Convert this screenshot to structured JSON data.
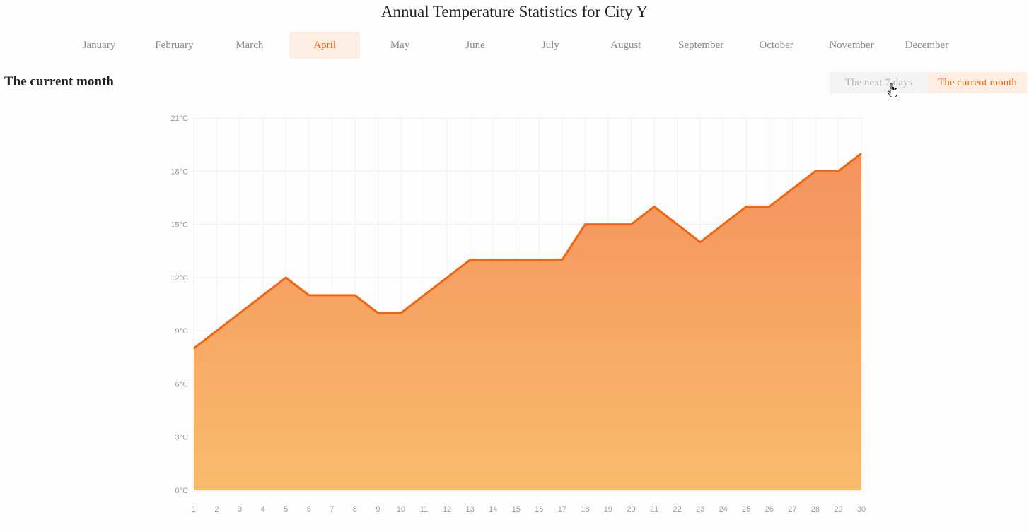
{
  "header": {
    "title": "Annual Temperature Statistics for City Y"
  },
  "months": {
    "items": [
      "January",
      "February",
      "March",
      "April",
      "May",
      "June",
      "July",
      "August",
      "September",
      "October",
      "November",
      "December"
    ],
    "active_index": 3
  },
  "section": {
    "title": "The current month"
  },
  "range_toggle": {
    "options": [
      "The next 7 days",
      "The current month"
    ],
    "active_index": 1
  },
  "colors": {
    "accent": "#f06510",
    "area_top": "#f4925e",
    "area_bottom": "#f9bb6c",
    "tab_active_bg": "#fdeee4"
  },
  "chart_data": {
    "type": "area",
    "title": "",
    "xlabel": "",
    "ylabel": "",
    "x": [
      1,
      2,
      3,
      4,
      5,
      6,
      7,
      8,
      9,
      10,
      11,
      12,
      13,
      14,
      15,
      16,
      17,
      18,
      19,
      20,
      21,
      22,
      23,
      24,
      25,
      26,
      27,
      28,
      29,
      30
    ],
    "series": [
      {
        "values": [
          8,
          9,
          10,
          11,
          12,
          11,
          11,
          11,
          10,
          10,
          11,
          12,
          13,
          13,
          13,
          13,
          13,
          15,
          15,
          15,
          16,
          15,
          14,
          15,
          16,
          16,
          17,
          18,
          18,
          19
        ]
      }
    ],
    "ylim": [
      0,
      21
    ],
    "y_ticks": [
      0,
      3,
      6,
      9,
      12,
      15,
      18,
      21
    ],
    "y_tick_labels": [
      "0°C",
      "3°C",
      "6°C",
      "9°C",
      "12°C",
      "15°C",
      "18°C",
      "21°C"
    ],
    "grid": true,
    "legend": "none"
  }
}
